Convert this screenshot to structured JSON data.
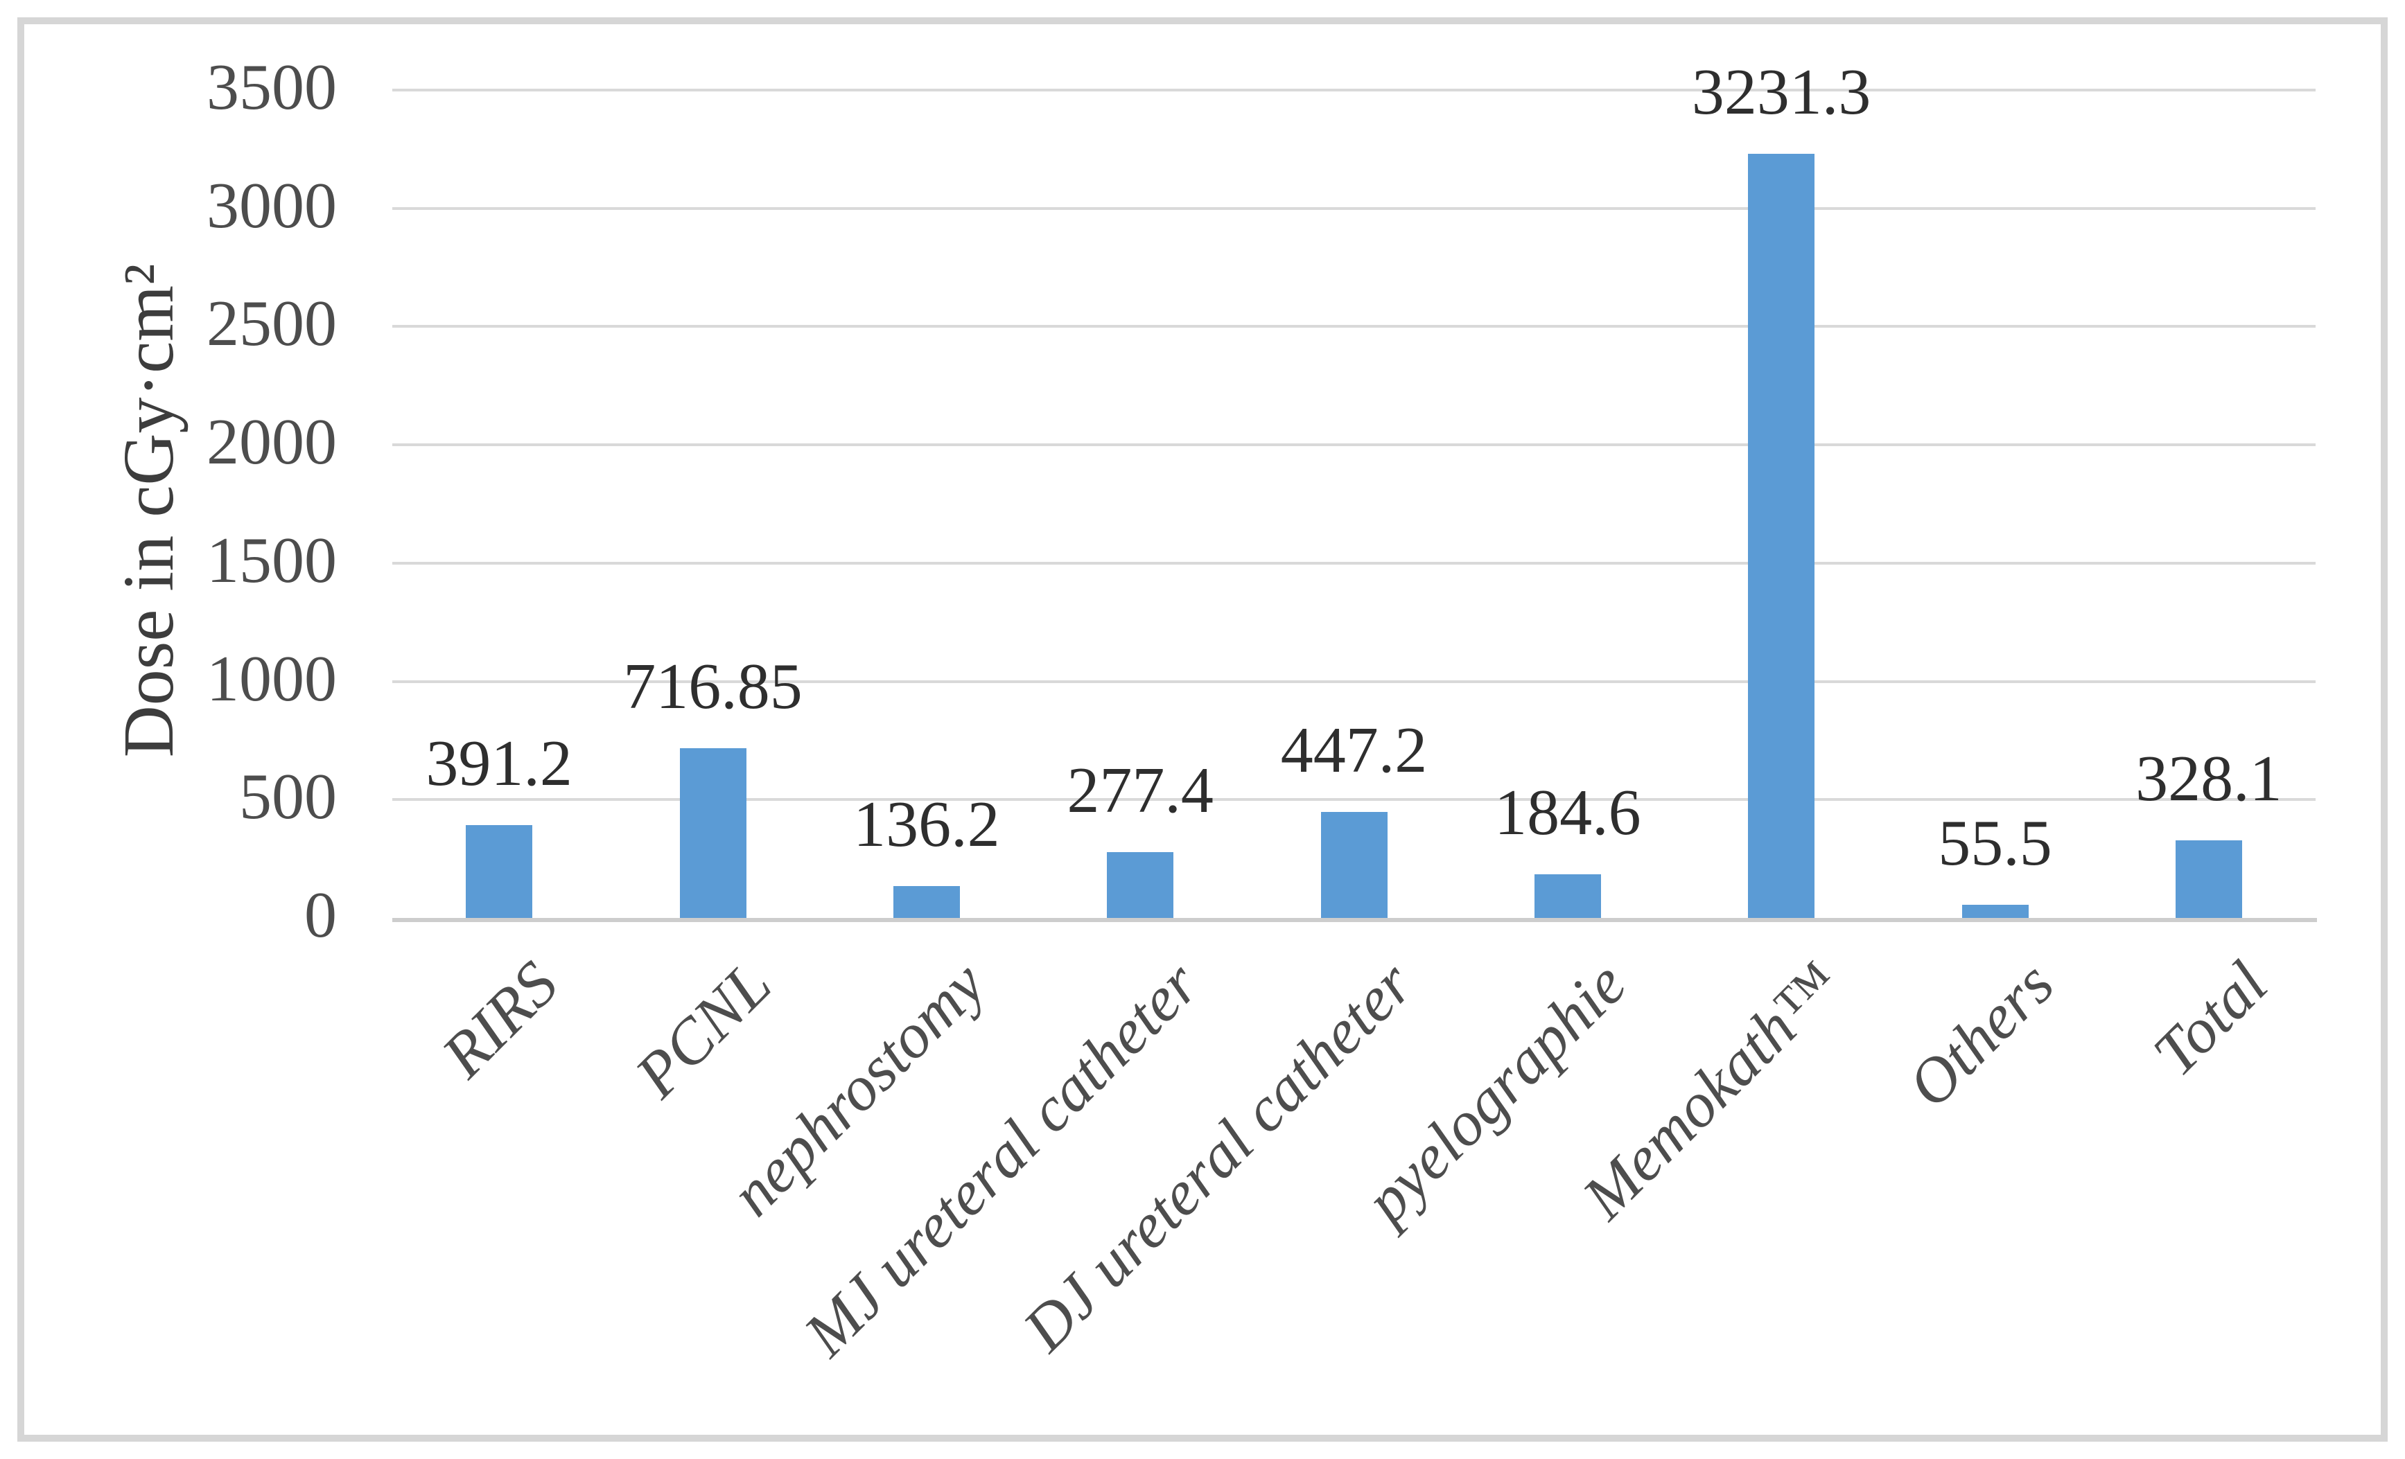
{
  "chart_data": {
    "type": "bar",
    "title": "",
    "xlabel": "",
    "ylabel": "Dose in cGy·cm²",
    "categories": [
      "RIRS",
      "PCNL",
      "nephrostomy",
      "MJ ureteral catheter",
      "DJ ureteral catheter",
      "pyelographie",
      "Memokath™",
      "Others",
      "Total"
    ],
    "values": [
      391.2,
      716.85,
      136.2,
      277.4,
      447.2,
      184.6,
      3231.3,
      55.5,
      328.1
    ],
    "data_labels": [
      "391.2",
      "716.85",
      "136.2",
      "277.4",
      "447.2",
      "184.6",
      "3231.3",
      "55.5",
      "328.1"
    ],
    "yticks": [
      0,
      500,
      1000,
      1500,
      2000,
      2500,
      3000,
      3500
    ],
    "ylim": [
      0,
      3500
    ],
    "grid": true,
    "legend_position": "none",
    "bar_color": "#5b9bd5",
    "gridline_color": "#d9d9d9",
    "axis_line_color": "#cdcdcd",
    "frame_border_color": "#d6d6d6",
    "tick_text_color": "#4d4d4d",
    "data_label_color": "#2e2e2e"
  }
}
